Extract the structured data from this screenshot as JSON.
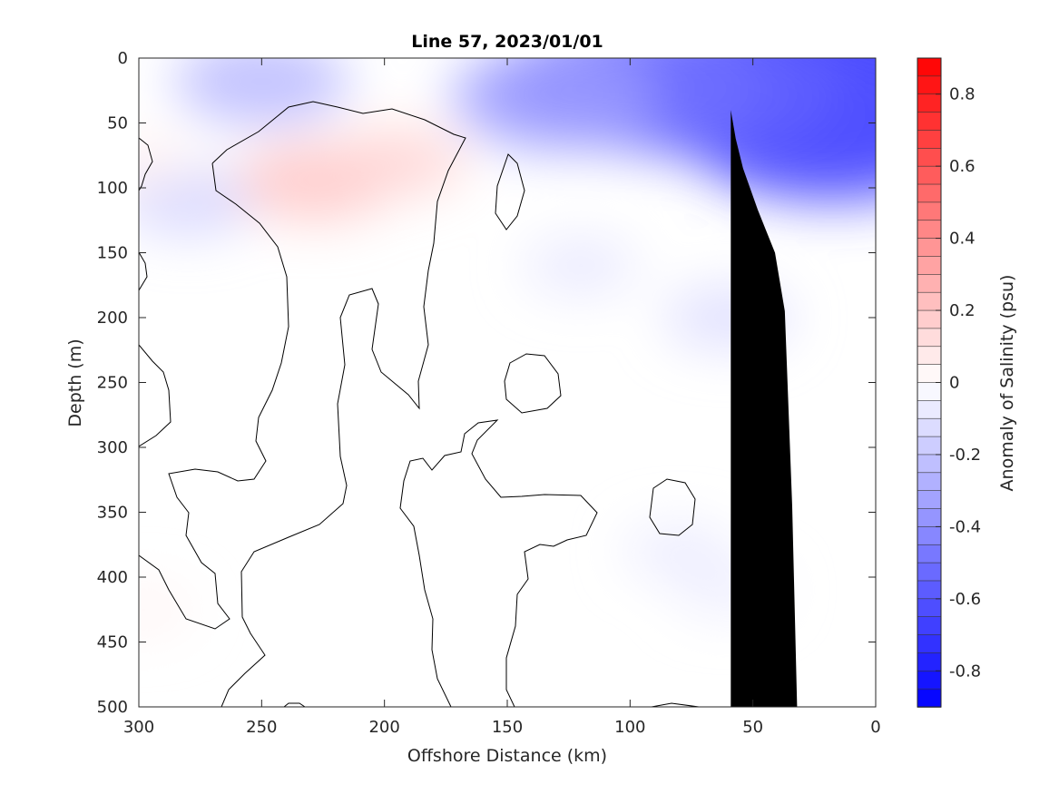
{
  "chart_data": {
    "type": "heatmap",
    "title": "Line 57, 2023/01/01",
    "xlabel": "Offshore Distance (km)",
    "ylabel": "Depth (m)",
    "xlim": [
      300,
      0
    ],
    "ylim": [
      0,
      500
    ],
    "x_reversed": true,
    "y_reversed": true,
    "xticks": [
      300,
      250,
      200,
      150,
      100,
      50,
      0
    ],
    "yticks": [
      0,
      50,
      100,
      150,
      200,
      250,
      300,
      350,
      400,
      450,
      500
    ],
    "grid": false,
    "colorbar": {
      "label": "Anomaly of Salinity (psu)",
      "range": [
        -0.9,
        0.9
      ],
      "step": 0.05,
      "ticks": [
        0.8,
        0.6,
        0.4,
        0.2,
        0,
        -0.2,
        -0.4,
        -0.6,
        -0.8
      ],
      "tick_labels": [
        "0.8",
        "0.6",
        "0.4",
        "0.2",
        "0",
        "-0.2",
        "-0.4",
        "-0.6",
        "-0.8"
      ],
      "colormap": "blue-white-red",
      "colors": {
        "negative": "#0000ff",
        "zero": "#ffffff",
        "positive": "#ff0000"
      }
    },
    "contour_level": 0,
    "bathymetry": {
      "color": "#000000",
      "points": [
        [
          32,
          500
        ],
        [
          34,
          345
        ],
        [
          37,
          195
        ],
        [
          41,
          150
        ],
        [
          48,
          117
        ],
        [
          54,
          85
        ],
        [
          57,
          62
        ],
        [
          59,
          40
        ],
        [
          59,
          500
        ]
      ]
    },
    "anomaly_features": [
      {
        "x": 25,
        "y": 25,
        "value": -0.8
      },
      {
        "x": 17,
        "y": 55,
        "value": -0.6
      },
      {
        "x": 72,
        "y": 22,
        "value": -0.55
      },
      {
        "x": 100,
        "y": 20,
        "value": -0.5
      },
      {
        "x": 130,
        "y": 30,
        "value": -0.35
      },
      {
        "x": 250,
        "y": 18,
        "value": -0.25
      },
      {
        "x": 280,
        "y": 110,
        "value": -0.15
      },
      {
        "x": 60,
        "y": 200,
        "value": -0.12
      },
      {
        "x": 120,
        "y": 160,
        "value": -0.08
      },
      {
        "x": 80,
        "y": 380,
        "value": -0.07
      },
      {
        "x": 60,
        "y": 410,
        "value": -0.06
      },
      {
        "x": 228,
        "y": 95,
        "value": 0.2
      },
      {
        "x": 195,
        "y": 80,
        "value": 0.15
      },
      {
        "x": 298,
        "y": 80,
        "value": 0.05
      },
      {
        "x": 298,
        "y": 425,
        "value": 0.04
      }
    ]
  }
}
